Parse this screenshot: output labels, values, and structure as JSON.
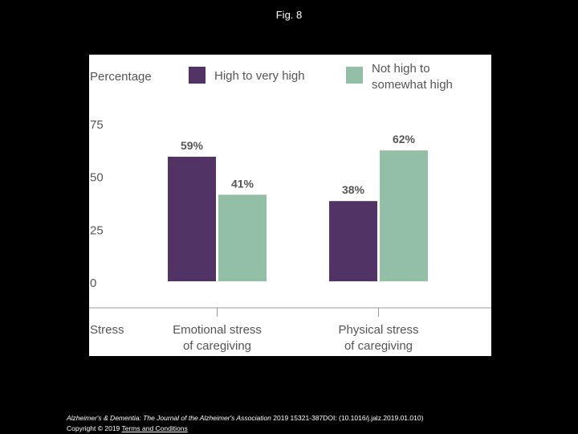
{
  "figure": {
    "title": "Fig. 8"
  },
  "chart_data": {
    "type": "bar",
    "categories": [
      "Emotional stress of caregiving",
      "Physical stress of caregiving"
    ],
    "category_lines": [
      [
        "Emotional stress",
        "of caregiving"
      ],
      [
        "Physical stress",
        "of caregiving"
      ]
    ],
    "series": [
      {
        "name": "High to very high",
        "name_lines": [
          "High to very high"
        ],
        "color": "#523366",
        "values": [
          59,
          38
        ],
        "labels": [
          "59%",
          "38%"
        ]
      },
      {
        "name": "Not high to somewhat high",
        "name_lines": [
          "Not high to",
          "somewhat high"
        ],
        "color": "#93bfa6",
        "values": [
          41,
          62
        ],
        "labels": [
          "41%",
          "62%"
        ]
      }
    ],
    "ylabel": "Percentage",
    "xlabel": "Stress",
    "yticks": [
      0,
      25,
      50,
      75
    ],
    "ylim": [
      0,
      75
    ],
    "grid": false,
    "legend": "top"
  },
  "footer": {
    "journal": "Alzheimer's & Dementia: The Journal of the Alzheimer's Association",
    "citation": " 2019 15321-387DOI: (10.1016/j.jalz.2019.01.010)",
    "copyright": "Copyright © 2019 ",
    "terms": "Terms and Conditions"
  }
}
